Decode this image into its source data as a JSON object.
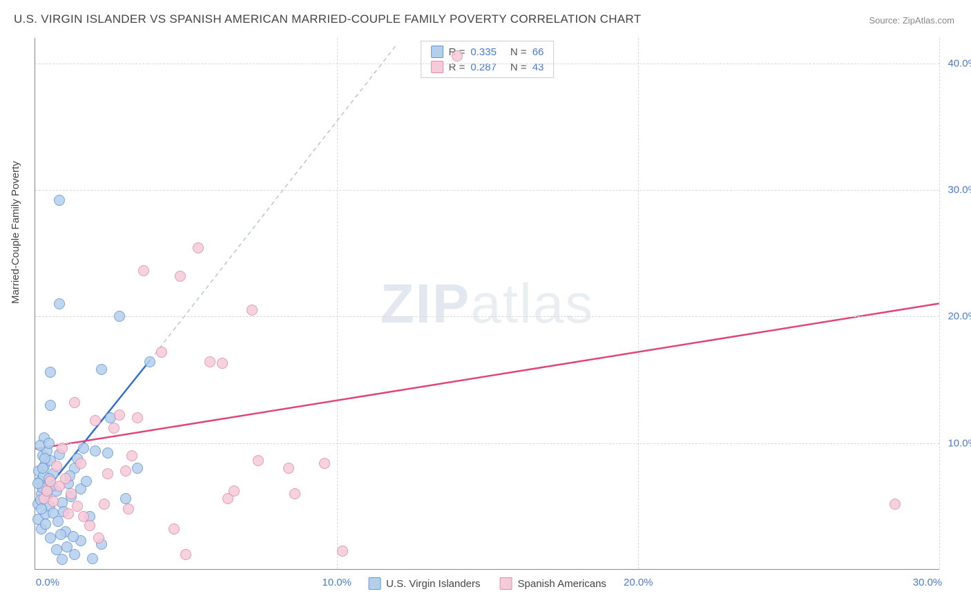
{
  "title": "U.S. VIRGIN ISLANDER VS SPANISH AMERICAN MARRIED-COUPLE FAMILY POVERTY CORRELATION CHART",
  "source": "Source: ZipAtlas.com",
  "yaxis_title": "Married-Couple Family Poverty",
  "watermark": {
    "part1": "ZIP",
    "part2": "atlas"
  },
  "chart": {
    "type": "scatter",
    "xlim": [
      0,
      30
    ],
    "ylim": [
      0,
      42
    ],
    "xtick_step": 10,
    "ytick_step": 10,
    "xtick_suffix": "%",
    "ytick_suffix": "%",
    "background_color": "#ffffff",
    "grid_color": "#d8d8d8",
    "axis_color": "#888888",
    "tick_label_color": "#4a7bd0",
    "tick_fontsize": 15,
    "marker_radius": 8,
    "marker_stroke_width": 1.5,
    "marker_fill_opacity": 0.25,
    "trend_stroke_width": 2.5,
    "trend_dash_color": "#b8c4d8",
    "series": [
      {
        "name": "U.S. Virgin Islanders",
        "stroke": "#6495d8",
        "fill": "#b4cfec",
        "trend_color": "#2f6fd0",
        "R": "0.335",
        "N": "66",
        "trend": {
          "x1": 0.2,
          "y1": 5.8,
          "x2": 3.8,
          "y2": 16.5,
          "extend_to_x": 12.0,
          "extend_to_y": 41.5
        },
        "points": [
          [
            0.1,
            5.2
          ],
          [
            0.2,
            6.0
          ],
          [
            0.15,
            7.0
          ],
          [
            0.3,
            8.2
          ],
          [
            0.25,
            9.0
          ],
          [
            0.4,
            9.4
          ],
          [
            0.1,
            4.0
          ],
          [
            0.35,
            4.4
          ],
          [
            0.2,
            3.2
          ],
          [
            0.5,
            2.5
          ],
          [
            0.7,
            1.6
          ],
          [
            0.9,
            0.8
          ],
          [
            0.6,
            7.6
          ],
          [
            0.5,
            8.6
          ],
          [
            0.8,
            9.1
          ],
          [
            0.3,
            10.4
          ],
          [
            0.5,
            13.0
          ],
          [
            0.5,
            15.6
          ],
          [
            0.8,
            21.0
          ],
          [
            0.8,
            29.2
          ],
          [
            1.0,
            3.0
          ],
          [
            1.3,
            1.2
          ],
          [
            1.5,
            2.3
          ],
          [
            1.2,
            5.8
          ],
          [
            1.5,
            6.4
          ],
          [
            1.3,
            8.0
          ],
          [
            1.6,
            9.6
          ],
          [
            2.0,
            9.4
          ],
          [
            2.4,
            9.2
          ],
          [
            2.8,
            20.0
          ],
          [
            2.2,
            15.8
          ],
          [
            2.5,
            12.0
          ],
          [
            3.8,
            16.4
          ],
          [
            3.0,
            5.6
          ],
          [
            3.4,
            8.0
          ],
          [
            1.8,
            4.2
          ],
          [
            2.2,
            2.0
          ],
          [
            1.9,
            0.9
          ],
          [
            0.9,
            5.3
          ],
          [
            1.1,
            6.8
          ],
          [
            0.7,
            6.2
          ],
          [
            0.4,
            5.8
          ],
          [
            0.18,
            5.5
          ],
          [
            0.22,
            6.5
          ],
          [
            0.12,
            7.8
          ],
          [
            0.28,
            7.4
          ],
          [
            0.32,
            8.8
          ],
          [
            0.45,
            7.2
          ],
          [
            0.55,
            6.6
          ],
          [
            0.38,
            6.2
          ],
          [
            0.48,
            5.0
          ],
          [
            0.6,
            4.5
          ],
          [
            0.75,
            3.8
          ],
          [
            0.85,
            2.8
          ],
          [
            1.05,
            1.8
          ],
          [
            1.25,
            2.6
          ],
          [
            0.95,
            4.6
          ],
          [
            1.15,
            7.4
          ],
          [
            1.4,
            8.8
          ],
          [
            1.7,
            7.0
          ],
          [
            0.15,
            9.8
          ],
          [
            0.25,
            8.0
          ],
          [
            0.45,
            10.0
          ],
          [
            0.1,
            6.8
          ],
          [
            0.2,
            4.8
          ],
          [
            0.35,
            3.6
          ]
        ]
      },
      {
        "name": "Spanish Americans",
        "stroke": "#e589a8",
        "fill": "#f5cad9",
        "trend_color": "#e0457a",
        "R": "0.287",
        "N": "43",
        "trend": {
          "x1": 0.0,
          "y1": 9.5,
          "x2": 30.0,
          "y2": 21.0
        },
        "points": [
          [
            0.3,
            5.6
          ],
          [
            0.4,
            6.2
          ],
          [
            0.6,
            5.4
          ],
          [
            0.8,
            6.6
          ],
          [
            1.0,
            7.2
          ],
          [
            1.2,
            6.0
          ],
          [
            1.4,
            5.0
          ],
          [
            1.6,
            4.2
          ],
          [
            1.8,
            3.5
          ],
          [
            1.3,
            13.2
          ],
          [
            2.0,
            11.8
          ],
          [
            2.4,
            7.6
          ],
          [
            2.6,
            11.2
          ],
          [
            2.8,
            12.2
          ],
          [
            3.0,
            7.8
          ],
          [
            3.2,
            9.0
          ],
          [
            3.4,
            12.0
          ],
          [
            3.6,
            23.6
          ],
          [
            4.2,
            17.2
          ],
          [
            4.8,
            23.2
          ],
          [
            5.4,
            25.4
          ],
          [
            5.8,
            16.4
          ],
          [
            6.2,
            16.3
          ],
          [
            6.4,
            5.6
          ],
          [
            6.6,
            6.2
          ],
          [
            7.2,
            20.5
          ],
          [
            7.4,
            8.6
          ],
          [
            8.4,
            8.0
          ],
          [
            8.6,
            6.0
          ],
          [
            9.6,
            8.4
          ],
          [
            10.2,
            1.5
          ],
          [
            2.1,
            2.5
          ],
          [
            4.6,
            3.2
          ],
          [
            5.0,
            1.2
          ],
          [
            28.5,
            5.2
          ],
          [
            14.0,
            40.6
          ],
          [
            0.5,
            7.0
          ],
          [
            0.7,
            8.2
          ],
          [
            1.1,
            4.4
          ],
          [
            1.5,
            8.4
          ],
          [
            0.9,
            9.6
          ],
          [
            2.3,
            5.2
          ],
          [
            3.1,
            4.8
          ]
        ]
      }
    ]
  },
  "legend_top_labels": {
    "R": "R =",
    "N": "N ="
  },
  "xtick_labels": [
    "0.0%",
    "10.0%",
    "20.0%",
    "30.0%"
  ],
  "ytick_labels": [
    "10.0%",
    "20.0%",
    "30.0%",
    "40.0%"
  ]
}
